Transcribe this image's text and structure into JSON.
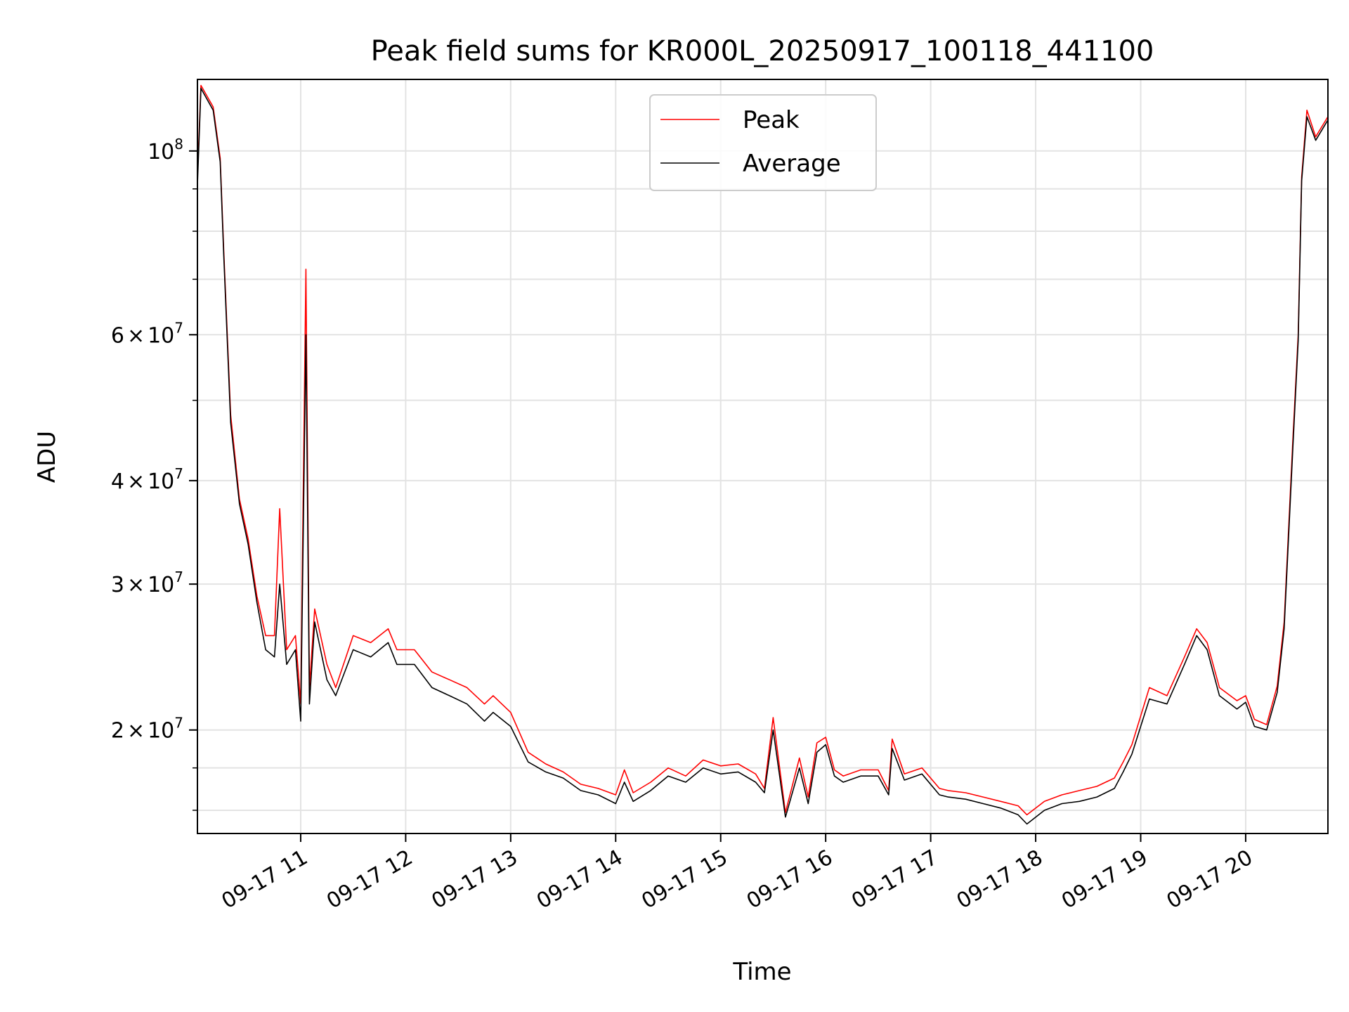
{
  "chart_data": {
    "type": "line",
    "title": "Peak field sums for KR000L_20250917_100118_441100",
    "xlabel": "Time",
    "ylabel": "ADU",
    "yscale": "log",
    "xlim": [
      "09-17 10:01",
      "09-17 20:47"
    ],
    "ylim": [
      15000000,
      122000000
    ],
    "grid": true,
    "legend_position": "top-center",
    "x_ticks": [
      "09-17 11",
      "09-17 12",
      "09-17 13",
      "09-17 14",
      "09-17 15",
      "09-17 16",
      "09-17 17",
      "09-17 18",
      "09-17 19",
      "09-17 20"
    ],
    "y_ticks": [
      {
        "mant": "2",
        "exp": "7"
      },
      {
        "mant": "3",
        "exp": "7"
      },
      {
        "mant": "4",
        "exp": "7"
      },
      {
        "mant": "6",
        "exp": "7"
      },
      {
        "mant": "",
        "exp": "8"
      }
    ],
    "colors": {
      "peak": "#ff0000",
      "average": "#000000"
    },
    "series": [
      {
        "name": "Peak",
        "x": [
          "09-17 10:01",
          "09-17 10:03",
          "09-17 10:10",
          "09-17 10:14",
          "09-17 10:16",
          "09-17 10:20",
          "09-17 10:25",
          "09-17 10:30",
          "09-17 10:35",
          "09-17 10:40",
          "09-17 10:45",
          "09-17 10:48",
          "09-17 10:52",
          "09-17 10:57",
          "09-17 11:00",
          "09-17 11:03",
          "09-17 11:05",
          "09-17 11:08",
          "09-17 11:15",
          "09-17 11:20",
          "09-17 11:30",
          "09-17 11:40",
          "09-17 11:50",
          "09-17 11:55",
          "09-17 12:05",
          "09-17 12:15",
          "09-17 12:25",
          "09-17 12:35",
          "09-17 12:45",
          "09-17 12:50",
          "09-17 13:00",
          "09-17 13:10",
          "09-17 13:20",
          "09-17 13:30",
          "09-17 13:40",
          "09-17 13:50",
          "09-17 14:00",
          "09-17 14:05",
          "09-17 14:10",
          "09-17 14:20",
          "09-17 14:30",
          "09-17 14:40",
          "09-17 14:50",
          "09-17 15:00",
          "09-17 15:10",
          "09-17 15:20",
          "09-17 15:25",
          "09-17 15:30",
          "09-17 15:37",
          "09-17 15:45",
          "09-17 15:50",
          "09-17 15:55",
          "09-17 16:00",
          "09-17 16:05",
          "09-17 16:10",
          "09-17 16:20",
          "09-17 16:30",
          "09-17 16:36",
          "09-17 16:38",
          "09-17 16:45",
          "09-17 16:55",
          "09-17 17:05",
          "09-17 17:10",
          "09-17 17:20",
          "09-17 17:30",
          "09-17 17:40",
          "09-17 17:50",
          "09-17 17:55",
          "09-17 18:05",
          "09-17 18:15",
          "09-17 18:25",
          "09-17 18:35",
          "09-17 18:45",
          "09-17 18:50",
          "09-17 18:55",
          "09-17 19:05",
          "09-17 19:15",
          "09-17 19:25",
          "09-17 19:32",
          "09-17 19:38",
          "09-17 19:45",
          "09-17 19:55",
          "09-17 20:00",
          "09-17 20:05",
          "09-17 20:12",
          "09-17 20:18",
          "09-17 20:22",
          "09-17 20:27",
          "09-17 20:30",
          "09-17 20:32",
          "09-17 20:35",
          "09-17 20:40",
          "09-17 20:47"
        ],
        "values": [
          93000000,
          120000000,
          113000000,
          98000000,
          76000000,
          48000000,
          38000000,
          34000000,
          29000000,
          26000000,
          26000000,
          37000000,
          25000000,
          26000000,
          21500000,
          72000000,
          22500000,
          28000000,
          24000000,
          22500000,
          26000000,
          25500000,
          26500000,
          25000000,
          25000000,
          23500000,
          23000000,
          22500000,
          21500000,
          22000000,
          21000000,
          18800000,
          18200000,
          17800000,
          17200000,
          17000000,
          16700000,
          17900000,
          16800000,
          17300000,
          18000000,
          17600000,
          18400000,
          18100000,
          18200000,
          17700000,
          17000000,
          20700000,
          15900000,
          18500000,
          16600000,
          19300000,
          19600000,
          17900000,
          17600000,
          17900000,
          17900000,
          16900000,
          19500000,
          17700000,
          18000000,
          17000000,
          16900000,
          16800000,
          16600000,
          16400000,
          16200000,
          15800000,
          16400000,
          16700000,
          16900000,
          17100000,
          17500000,
          18300000,
          19200000,
          22500000,
          22000000,
          24500000,
          26500000,
          25500000,
          22500000,
          21700000,
          22000000,
          20600000,
          20300000,
          22600000,
          27000000,
          45000000,
          60000000,
          93000000,
          112000000,
          104000000,
          110000000
        ]
      },
      {
        "name": "Average",
        "x": [
          "09-17 10:01",
          "09-17 10:03",
          "09-17 10:10",
          "09-17 10:14",
          "09-17 10:16",
          "09-17 10:20",
          "09-17 10:25",
          "09-17 10:30",
          "09-17 10:35",
          "09-17 10:40",
          "09-17 10:45",
          "09-17 10:48",
          "09-17 10:52",
          "09-17 10:57",
          "09-17 11:00",
          "09-17 11:03",
          "09-17 11:05",
          "09-17 11:08",
          "09-17 11:15",
          "09-17 11:20",
          "09-17 11:30",
          "09-17 11:40",
          "09-17 11:50",
          "09-17 11:55",
          "09-17 12:05",
          "09-17 12:15",
          "09-17 12:25",
          "09-17 12:35",
          "09-17 12:45",
          "09-17 12:50",
          "09-17 13:00",
          "09-17 13:10",
          "09-17 13:20",
          "09-17 13:30",
          "09-17 13:40",
          "09-17 13:50",
          "09-17 14:00",
          "09-17 14:05",
          "09-17 14:10",
          "09-17 14:20",
          "09-17 14:30",
          "09-17 14:40",
          "09-17 14:50",
          "09-17 15:00",
          "09-17 15:10",
          "09-17 15:20",
          "09-17 15:25",
          "09-17 15:30",
          "09-17 15:37",
          "09-17 15:45",
          "09-17 15:50",
          "09-17 15:55",
          "09-17 16:00",
          "09-17 16:05",
          "09-17 16:10",
          "09-17 16:20",
          "09-17 16:30",
          "09-17 16:36",
          "09-17 16:38",
          "09-17 16:45",
          "09-17 16:55",
          "09-17 17:05",
          "09-17 17:10",
          "09-17 17:20",
          "09-17 17:30",
          "09-17 17:40",
          "09-17 17:50",
          "09-17 17:55",
          "09-17 18:05",
          "09-17 18:15",
          "09-17 18:25",
          "09-17 18:35",
          "09-17 18:45",
          "09-17 18:50",
          "09-17 18:55",
          "09-17 19:05",
          "09-17 19:15",
          "09-17 19:25",
          "09-17 19:32",
          "09-17 19:38",
          "09-17 19:45",
          "09-17 19:55",
          "09-17 20:00",
          "09-17 20:05",
          "09-17 20:12",
          "09-17 20:18",
          "09-17 20:22",
          "09-17 20:27",
          "09-17 20:30",
          "09-17 20:32",
          "09-17 20:35",
          "09-17 20:40",
          "09-17 20:47"
        ],
        "values": [
          91000000,
          119000000,
          112000000,
          97000000,
          75000000,
          47000000,
          37500000,
          33500000,
          28500000,
          25000000,
          24500000,
          30000000,
          24000000,
          25000000,
          20500000,
          60000000,
          21500000,
          27000000,
          23000000,
          22000000,
          25000000,
          24500000,
          25500000,
          24000000,
          24000000,
          22500000,
          22000000,
          21500000,
          20500000,
          21000000,
          20200000,
          18300000,
          17800000,
          17500000,
          16900000,
          16700000,
          16300000,
          17300000,
          16400000,
          16900000,
          17600000,
          17300000,
          18000000,
          17700000,
          17800000,
          17300000,
          16800000,
          20000000,
          15700000,
          18000000,
          16300000,
          18800000,
          19200000,
          17600000,
          17300000,
          17600000,
          17600000,
          16700000,
          19000000,
          17400000,
          17700000,
          16700000,
          16600000,
          16500000,
          16300000,
          16100000,
          15800000,
          15400000,
          16000000,
          16300000,
          16400000,
          16600000,
          17000000,
          17800000,
          18700000,
          21800000,
          21500000,
          24000000,
          26000000,
          25000000,
          22000000,
          21200000,
          21600000,
          20200000,
          20000000,
          22200000,
          26500000,
          44000000,
          59000000,
          92000000,
          110000000,
          103000000,
          109000000
        ]
      }
    ]
  }
}
